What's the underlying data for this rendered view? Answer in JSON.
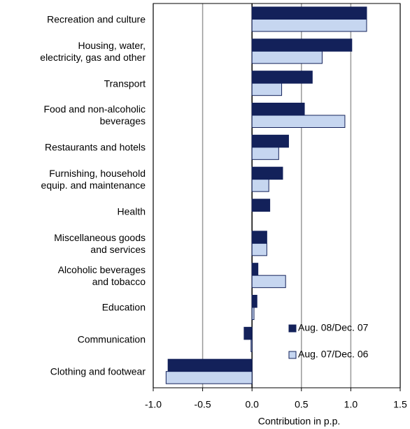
{
  "chart_data": {
    "type": "barh",
    "categories": [
      "Recreation and culture",
      "Housing, water,\nelectricity, gas and other",
      "Transport",
      "Food and non-alcoholic\nbeverages",
      "Restaurants and hotels",
      "Furnishing, household\nequip. and maintenance",
      "Health",
      "Miscellaneous goods\nand services",
      "Alcoholic beverages\nand tobacco",
      "Education",
      "Communication",
      "Clothing and footwear"
    ],
    "series": [
      {
        "name": "Aug. 08/Dec. 07",
        "color": "#13215a",
        "values": [
          1.16,
          1.01,
          0.61,
          0.53,
          0.37,
          0.31,
          0.18,
          0.15,
          0.06,
          0.05,
          -0.08,
          -0.85
        ]
      },
      {
        "name": "Aug. 07/Dec. 06",
        "color": "#c6d6f0",
        "values": [
          1.16,
          0.71,
          0.3,
          0.94,
          0.27,
          0.17,
          0.0,
          0.15,
          0.34,
          0.02,
          -0.01,
          -0.87
        ]
      }
    ],
    "xlabel": "Contribution in p.p.",
    "xlim": [
      -1,
      1.5
    ],
    "xticks": [
      {
        "value": -1,
        "label": "-1.0"
      },
      -0.5,
      {
        "value": 0,
        "label": "0.0"
      },
      0.5,
      {
        "value": 1,
        "label": "1.0"
      },
      1.5
    ],
    "grid": true,
    "legend": "lower right"
  }
}
